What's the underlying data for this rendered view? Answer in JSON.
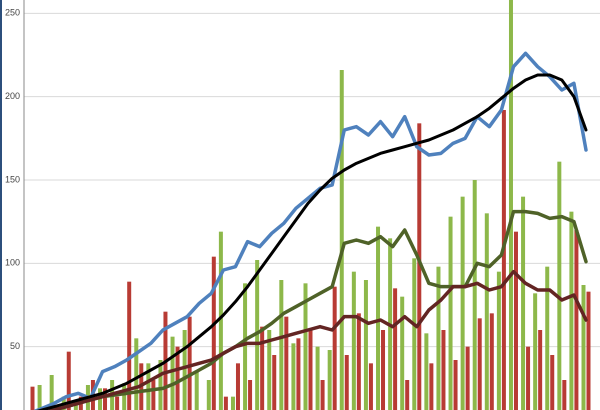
{
  "chart_data": {
    "type": "bar_line",
    "ylim": [
      12,
      258
    ],
    "yticks": [
      50,
      100,
      150,
      200,
      250
    ],
    "grid": true,
    "bars": [
      {
        "color": "#8db84a",
        "values": [
          5,
          27,
          33,
          20,
          18,
          27,
          25,
          30,
          28,
          55,
          40,
          42,
          56,
          60,
          35,
          30,
          119,
          20,
          88,
          102,
          60,
          90,
          52,
          88,
          50,
          48,
          216,
          95,
          90,
          122,
          115,
          80,
          103,
          58,
          98,
          128,
          140,
          150,
          130,
          95,
          260,
          140,
          82,
          98,
          161,
          131,
          87
        ]
      },
      {
        "color": "#b83b34",
        "values": [
          26,
          10,
          15,
          47,
          20,
          30,
          25,
          20,
          89,
          40,
          30,
          71,
          50,
          68,
          10,
          104,
          20,
          40,
          30,
          62,
          45,
          68,
          55,
          60,
          30,
          86,
          45,
          70,
          40,
          60,
          85,
          30,
          184,
          40,
          60,
          42,
          50,
          67,
          70,
          192,
          119,
          50,
          60,
          45,
          30,
          120,
          83
        ]
      }
    ],
    "series": [
      {
        "color": "#4f81bd",
        "values": [
          10,
          13,
          16,
          20,
          22,
          19,
          35,
          38,
          42,
          47,
          52,
          60,
          64,
          68,
          76,
          82,
          96,
          98,
          113,
          110,
          118,
          124,
          133,
          139,
          145,
          147,
          180,
          182,
          177,
          185,
          176,
          188,
          170,
          165,
          166,
          172,
          175,
          188,
          182,
          192,
          218,
          226,
          218,
          212,
          204,
          208,
          168
        ]
      },
      {
        "color": "#4f6228",
        "values": [
          8,
          10,
          12,
          14,
          16,
          18,
          20,
          21,
          22,
          23,
          24,
          25,
          28,
          32,
          36,
          40,
          46,
          50,
          55,
          59,
          64,
          70,
          74,
          78,
          82,
          86,
          112,
          114,
          112,
          116,
          110,
          120,
          105,
          88,
          86,
          86,
          86,
          100,
          98,
          105,
          131,
          131,
          130,
          127,
          128,
          125,
          101
        ]
      },
      {
        "color": "#632523",
        "values": [
          8,
          10,
          12,
          14,
          16,
          18,
          20,
          22,
          24,
          26,
          30,
          34,
          36,
          38,
          40,
          42,
          46,
          50,
          52,
          52,
          54,
          56,
          58,
          60,
          62,
          60,
          68,
          68,
          64,
          66,
          62,
          68,
          62,
          72,
          78,
          86,
          86,
          88,
          84,
          86,
          95,
          88,
          84,
          84,
          78,
          81,
          66
        ]
      },
      {
        "color": "#000000",
        "values": [
          10,
          12,
          14,
          16,
          18,
          20,
          22,
          25,
          28,
          32,
          36,
          40,
          45,
          50,
          56,
          62,
          69,
          77,
          86,
          96,
          106,
          116,
          126,
          136,
          144,
          151,
          156,
          160,
          163,
          166,
          168,
          170,
          172,
          174,
          177,
          180,
          184,
          188,
          193,
          199,
          205,
          210,
          213,
          213,
          210,
          200,
          180
        ]
      }
    ]
  }
}
